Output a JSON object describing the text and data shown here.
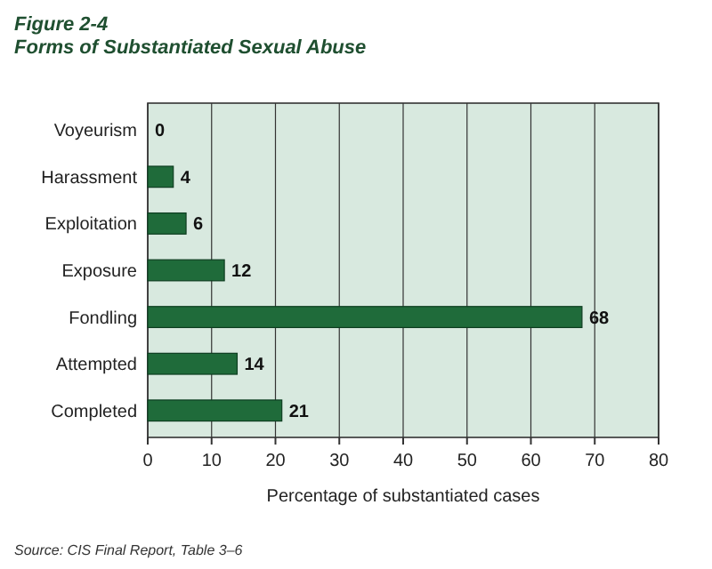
{
  "chart_data": {
    "type": "bar",
    "orientation": "horizontal",
    "title": "Figure 2-4",
    "subtitle": "Forms of Substantiated Sexual Abuse",
    "categories": [
      "Voyeurism",
      "Harassment",
      "Exploitation",
      "Exposure",
      "Fondling",
      "Attempted",
      "Completed"
    ],
    "values": [
      0,
      4,
      6,
      12,
      68,
      14,
      21
    ],
    "color": "#1f6b3a",
    "data_labels": true,
    "xlim": [
      0,
      80
    ],
    "xticks": [
      0,
      10,
      20,
      30,
      40,
      50,
      60,
      70,
      80
    ],
    "grid": "x",
    "xlabel": "Percentage of substantiated cases",
    "annotations": [
      "Source: CIS Final Report, Table 3–6"
    ]
  }
}
